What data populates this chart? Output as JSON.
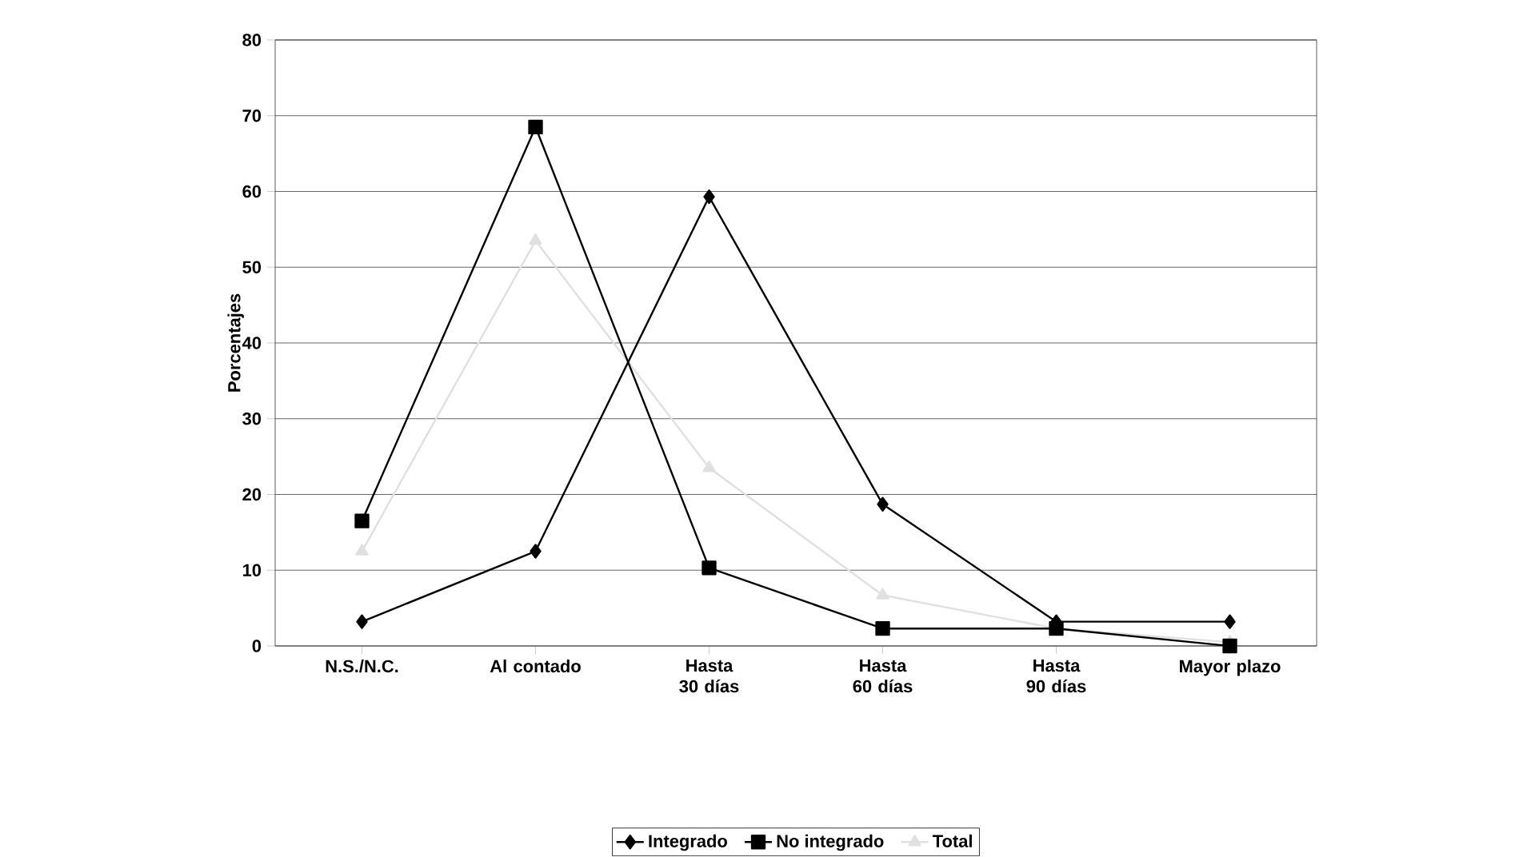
{
  "chart_data": {
    "type": "line",
    "ylabel": "Porcentajes",
    "categories": [
      "N.S./N.C.",
      "Al contado",
      "Hasta 30 días",
      "Hasta 60 días",
      "Hasta 90 días",
      "Mayor plazo"
    ],
    "series": [
      {
        "name": "Integrado",
        "color": "#000000",
        "marker": "diamond",
        "values": [
          3.2,
          12.5,
          59.3,
          18.7,
          3.2,
          3.2
        ]
      },
      {
        "name": "No integrado",
        "color": "#000000",
        "marker": "square",
        "values": [
          16.5,
          68.5,
          10.3,
          2.3,
          2.3,
          0
        ]
      },
      {
        "name": "Total",
        "color": "#e0e0e0",
        "marker": "triangle",
        "values": [
          12.5,
          53.5,
          23.5,
          6.7,
          2.3,
          0.5
        ]
      }
    ],
    "ylim": [
      0,
      80
    ],
    "yticks": [
      0,
      10,
      20,
      30,
      40,
      50,
      60,
      70,
      80
    ],
    "grid": "y",
    "legend": "bottom",
    "line_style": "solid"
  }
}
